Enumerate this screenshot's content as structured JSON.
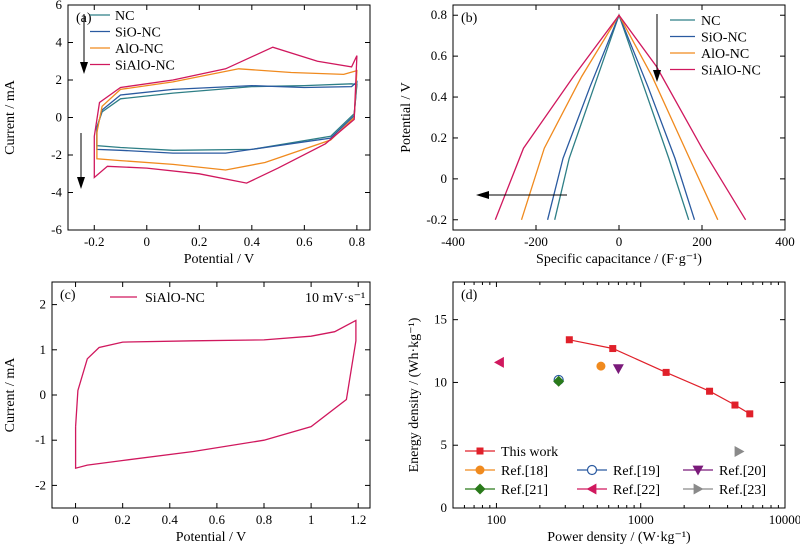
{
  "colors": {
    "NC": "#2e7f86",
    "SiO-NC": "#2a5aa0",
    "AlO-NC": "#f08a1e",
    "SiAlO-NC": "#d0185e",
    "legend_ref": "#7a1a7a"
  },
  "chart_data": [
    {
      "id": "a",
      "type": "line",
      "panel_label": "(a)",
      "xlabel": "Potential / V",
      "ylabel": "Current / mA",
      "xlim": [
        -0.3,
        0.85
      ],
      "ylim": [
        -6,
        6
      ],
      "xticks": [
        -0.2,
        0,
        0.2,
        0.4,
        0.6,
        0.8
      ],
      "yticks": [
        -6,
        -4,
        -2,
        0,
        2,
        4,
        6
      ],
      "legend": [
        "NC",
        "SiO-NC",
        "AlO-NC",
        "SiAlO-NC"
      ],
      "series": [
        {
          "name": "NC",
          "upper": [
            [
              -0.19,
              -0.5
            ],
            [
              -0.17,
              0.3
            ],
            [
              -0.1,
              1.0
            ],
            [
              0.1,
              1.3
            ],
            [
              0.4,
              1.65
            ],
            [
              0.6,
              1.7
            ],
            [
              0.78,
              1.8
            ],
            [
              0.8,
              1.75
            ]
          ],
          "lower": [
            [
              0.8,
              1.75
            ],
            [
              0.79,
              0.2
            ],
            [
              0.7,
              -1.0
            ],
            [
              0.4,
              -1.7
            ],
            [
              0.1,
              -1.75
            ],
            [
              -0.1,
              -1.6
            ],
            [
              -0.19,
              -1.5
            ],
            [
              -0.19,
              -0.5
            ]
          ]
        },
        {
          "name": "SiO-NC",
          "upper": [
            [
              -0.19,
              -0.6
            ],
            [
              -0.17,
              0.4
            ],
            [
              -0.1,
              1.2
            ],
            [
              0.1,
              1.5
            ],
            [
              0.4,
              1.7
            ],
            [
              0.6,
              1.6
            ],
            [
              0.78,
              1.65
            ],
            [
              0.8,
              1.9
            ]
          ],
          "lower": [
            [
              0.8,
              1.9
            ],
            [
              0.79,
              0.1
            ],
            [
              0.7,
              -1.1
            ],
            [
              0.3,
              -1.9
            ],
            [
              0.1,
              -1.9
            ],
            [
              -0.1,
              -1.75
            ],
            [
              -0.19,
              -1.7
            ],
            [
              -0.19,
              -0.6
            ]
          ]
        },
        {
          "name": "AlO-NC",
          "upper": [
            [
              -0.19,
              -0.8
            ],
            [
              -0.17,
              0.6
            ],
            [
              -0.1,
              1.5
            ],
            [
              0.1,
              1.9
            ],
            [
              0.35,
              2.6
            ],
            [
              0.55,
              2.4
            ],
            [
              0.75,
              2.3
            ],
            [
              0.8,
              2.5
            ]
          ],
          "lower": [
            [
              0.8,
              2.5
            ],
            [
              0.79,
              0.0
            ],
            [
              0.7,
              -1.2
            ],
            [
              0.45,
              -2.4
            ],
            [
              0.3,
              -2.8
            ],
            [
              0.1,
              -2.5
            ],
            [
              -0.1,
              -2.3
            ],
            [
              -0.19,
              -2.2
            ],
            [
              -0.19,
              -0.8
            ]
          ]
        },
        {
          "name": "SiAlO-NC",
          "upper": [
            [
              -0.2,
              -1.0
            ],
            [
              -0.18,
              0.8
            ],
            [
              -0.1,
              1.6
            ],
            [
              0.1,
              2.0
            ],
            [
              0.3,
              2.6
            ],
            [
              0.48,
              3.75
            ],
            [
              0.65,
              3.0
            ],
            [
              0.78,
              2.7
            ],
            [
              0.8,
              3.3
            ]
          ],
          "lower": [
            [
              0.8,
              3.3
            ],
            [
              0.79,
              -0.1
            ],
            [
              0.68,
              -1.4
            ],
            [
              0.5,
              -2.7
            ],
            [
              0.38,
              -3.5
            ],
            [
              0.2,
              -3.0
            ],
            [
              0.0,
              -2.7
            ],
            [
              -0.15,
              -2.6
            ],
            [
              -0.2,
              -3.2
            ],
            [
              -0.2,
              -1.0
            ]
          ]
        }
      ]
    },
    {
      "id": "b",
      "type": "line",
      "panel_label": "(b)",
      "xlabel": "Specific capacitance / (F·g⁻¹)",
      "ylabel": "Potential / V",
      "xlim": [
        -400,
        400
      ],
      "ylim": [
        -0.25,
        0.85
      ],
      "xticks": [
        -400,
        -200,
        0,
        200,
        400
      ],
      "yticks": [
        -0.2,
        0,
        0.2,
        0.4,
        0.6,
        0.8
      ],
      "legend": [
        "NC",
        "SiO-NC",
        "AlO-NC",
        "SiAlO-NC"
      ],
      "series": [
        {
          "name": "NC",
          "points": [
            [
              -155,
              -0.2
            ],
            [
              -120,
              0.1
            ],
            [
              -60,
              0.45
            ],
            [
              0,
              0.8
            ],
            [
              60,
              0.45
            ],
            [
              120,
              0.1
            ],
            [
              168,
              -0.2
            ]
          ]
        },
        {
          "name": "SiO-NC",
          "points": [
            [
              -172,
              -0.2
            ],
            [
              -135,
              0.1
            ],
            [
              -70,
              0.45
            ],
            [
              0,
              0.8
            ],
            [
              70,
              0.45
            ],
            [
              135,
              0.1
            ],
            [
              182,
              -0.2
            ]
          ]
        },
        {
          "name": "AlO-NC",
          "points": [
            [
              -235,
              -0.2
            ],
            [
              -180,
              0.15
            ],
            [
              -90,
              0.5
            ],
            [
              0,
              0.8
            ],
            [
              80,
              0.5
            ],
            [
              170,
              0.1
            ],
            [
              238,
              -0.2
            ]
          ]
        },
        {
          "name": "SiAlO-NC",
          "points": [
            [
              -298,
              -0.2
            ],
            [
              -230,
              0.15
            ],
            [
              -110,
              0.5
            ],
            [
              0,
              0.8
            ],
            [
              90,
              0.55
            ],
            [
              200,
              0.15
            ],
            [
              305,
              -0.2
            ]
          ]
        }
      ]
    },
    {
      "id": "c",
      "type": "line",
      "panel_label": "(c)",
      "annotation": "10 mV·s⁻¹",
      "xlabel": "Potential / V",
      "ylabel": "Current / mA",
      "xlim": [
        -0.1,
        1.25
      ],
      "ylim": [
        -2.5,
        2.5
      ],
      "xticks": [
        0,
        0.2,
        0.4,
        0.6,
        0.8,
        1.0,
        1.2
      ],
      "yticks": [
        -2,
        -1,
        0,
        1,
        2
      ],
      "legend": [
        "SiAlO-NC"
      ],
      "series": [
        {
          "name": "SiAlO-NC",
          "points": [
            [
              0.0,
              -0.7
            ],
            [
              0.01,
              0.1
            ],
            [
              0.05,
              0.8
            ],
            [
              0.1,
              1.05
            ],
            [
              0.2,
              1.17
            ],
            [
              0.5,
              1.2
            ],
            [
              0.8,
              1.22
            ],
            [
              1.0,
              1.3
            ],
            [
              1.1,
              1.4
            ],
            [
              1.19,
              1.65
            ],
            [
              1.19,
              1.2
            ],
            [
              1.15,
              -0.1
            ],
            [
              1.0,
              -0.7
            ],
            [
              0.8,
              -1.0
            ],
            [
              0.5,
              -1.25
            ],
            [
              0.2,
              -1.45
            ],
            [
              0.05,
              -1.55
            ],
            [
              0.0,
              -1.62
            ],
            [
              0.0,
              -0.7
            ]
          ]
        }
      ]
    },
    {
      "id": "d",
      "type": "scatter",
      "panel_label": "(d)",
      "xlabel": "Power density / (W·kg⁻¹)",
      "ylabel": "Energy density / (Wh·kg⁻¹)",
      "xscale": "log",
      "xlim": [
        50,
        10000
      ],
      "ylim": [
        0,
        18
      ],
      "xticks": [
        100,
        1000,
        10000
      ],
      "xtick_labels": [
        "100",
        "1000",
        "10000"
      ],
      "yticks": [
        0,
        5,
        10,
        15
      ],
      "this_work": {
        "name": "This work",
        "x": [
          320,
          640,
          1500,
          3000,
          4500,
          5700
        ],
        "y": [
          13.4,
          12.7,
          10.8,
          9.3,
          8.2,
          7.5
        ]
      },
      "refs": [
        {
          "name": "Ref.[18]",
          "x": [
            530
          ],
          "y": [
            11.3
          ],
          "color": "#f08a1e",
          "marker": "circle"
        },
        {
          "name": "Ref.[19]",
          "x": [
            270
          ],
          "y": [
            10.2
          ],
          "color": "#2a5aa0",
          "marker": "circle-open"
        },
        {
          "name": "Ref.[20]",
          "x": [
            700
          ],
          "y": [
            11.1
          ],
          "color": "#7a1a7a",
          "marker": "triangle-down"
        },
        {
          "name": "Ref.[21]",
          "x": [
            270
          ],
          "y": [
            10.1
          ],
          "color": "#2a7a1a",
          "marker": "diamond"
        },
        {
          "name": "Ref.[22]",
          "x": [
            105
          ],
          "y": [
            11.6
          ],
          "color": "#d0185e",
          "marker": "triangle-left"
        },
        {
          "name": "Ref.[23]",
          "x": [
            4800
          ],
          "y": [
            4.5
          ],
          "color": "#8a8a8a",
          "marker": "triangle-right"
        }
      ]
    }
  ]
}
